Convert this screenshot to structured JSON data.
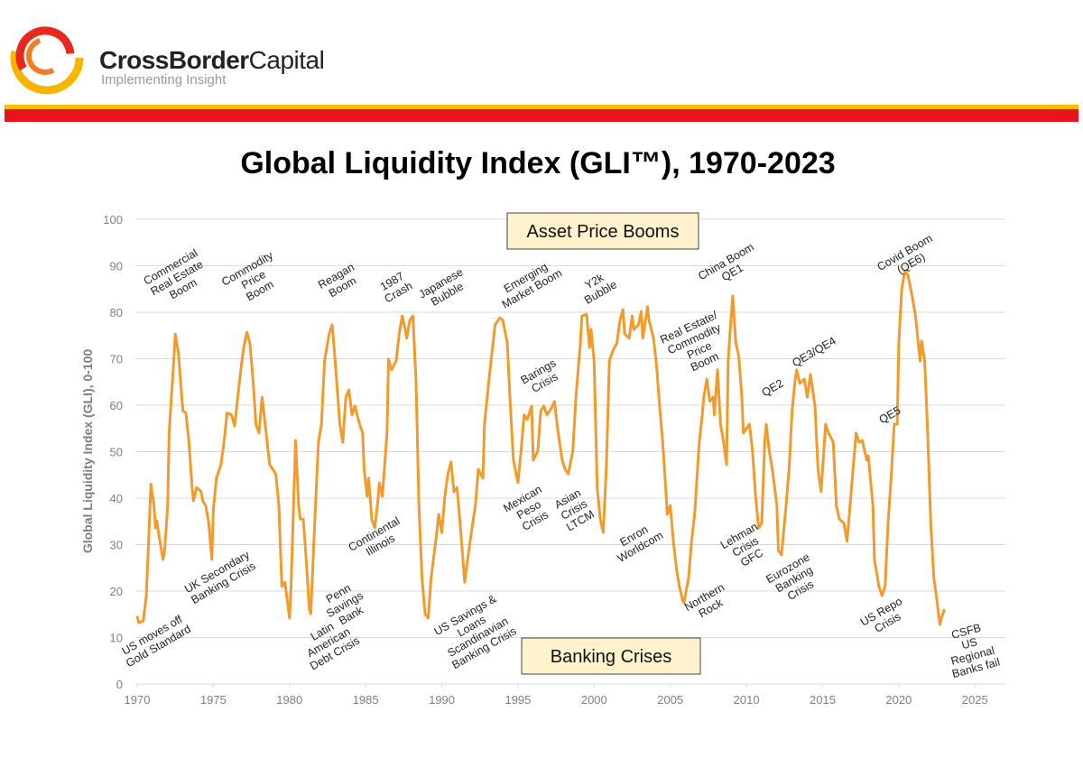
{
  "header": {
    "brand_bold": "CrossBorder",
    "brand_regular": "Capital",
    "tagline": "Implementing Insight"
  },
  "chart_data": {
    "type": "line",
    "title": "Global Liquidity Index (GLI™), 1970-2023",
    "y_label": "Global Liquidity Index (GLI), 0-100",
    "color": "#f39a2b",
    "grid": true,
    "xlim": [
      1970,
      2027
    ],
    "ylim": [
      0,
      100
    ],
    "xticks": [
      1970,
      1975,
      1980,
      1985,
      1990,
      1995,
      2000,
      2005,
      2010,
      2015,
      2020,
      2025
    ],
    "yticks": [
      0,
      10,
      20,
      30,
      40,
      50,
      60,
      70,
      80,
      90,
      100
    ],
    "x": [
      1970.0,
      1970.1,
      1970.4,
      1970.6,
      1970.8,
      1970.9,
      1971.1,
      1971.2,
      1971.3,
      1971.4,
      1971.7,
      1971.8,
      1972.0,
      1972.1,
      1972.4,
      1972.5,
      1972.7,
      1973.0,
      1973.2,
      1973.4,
      1973.6,
      1973.7,
      1973.9,
      1974.2,
      1974.3,
      1974.5,
      1974.7,
      1974.9,
      1975.0,
      1975.2,
      1975.5,
      1975.7,
      1975.9,
      1976.2,
      1976.4,
      1976.6,
      1976.8,
      1977.0,
      1977.2,
      1977.4,
      1977.6,
      1977.8,
      1978.0,
      1978.2,
      1978.4,
      1978.7,
      1978.9,
      1979.1,
      1979.3,
      1979.5,
      1979.7,
      1980.0,
      1980.1,
      1980.4,
      1980.6,
      1980.7,
      1980.9,
      1981.1,
      1981.3,
      1981.4,
      1981.6,
      1981.9,
      1982.1,
      1982.3,
      1982.6,
      1982.8,
      1983.0,
      1983.3,
      1983.5,
      1983.7,
      1983.9,
      1984.1,
      1984.3,
      1984.6,
      1984.8,
      1984.9,
      1985.1,
      1985.2,
      1985.4,
      1985.6,
      1985.8,
      1985.9,
      1986.1,
      1986.4,
      1986.5,
      1986.7,
      1987.0,
      1987.2,
      1987.4,
      1987.6,
      1987.7,
      1987.9,
      1988.1,
      1988.3,
      1988.5,
      1988.7,
      1988.9,
      1989.1,
      1989.3,
      1989.6,
      1989.8,
      1990.0,
      1990.2,
      1990.4,
      1990.6,
      1990.8,
      1991.0,
      1991.2,
      1991.5,
      1991.7,
      1991.9,
      1992.2,
      1992.4,
      1992.7,
      1992.8,
      1993.1,
      1993.3,
      1993.5,
      1993.8,
      1994.0,
      1994.3,
      1994.5,
      1994.7,
      1995.0,
      1995.2,
      1995.4,
      1995.6,
      1995.9,
      1996.0,
      1996.3,
      1996.5,
      1996.7,
      1996.9,
      1997.2,
      1997.4,
      1997.6,
      1997.9,
      1998.1,
      1998.3,
      1998.6,
      1998.8,
      1999.1,
      1999.2,
      1999.5,
      1999.7,
      1999.8,
      2000.0,
      2000.2,
      2000.4,
      2000.6,
      2000.8,
      2001.0,
      2001.2,
      2001.5,
      2001.7,
      2001.9,
      2002.0,
      2002.3,
      2002.5,
      2002.6,
      2002.9,
      2003.1,
      2003.2,
      2003.5,
      2003.6,
      2003.9,
      2004.1,
      2004.3,
      2004.5,
      2004.7,
      2004.8,
      2005.0,
      2005.2,
      2005.4,
      2005.6,
      2005.8,
      2005.9,
      2006.2,
      2006.4,
      2006.6,
      2006.9,
      2007.1,
      2007.2,
      2007.4,
      2007.6,
      2007.8,
      2007.9,
      2008.1,
      2008.3,
      2008.5,
      2008.7,
      2008.8,
      2009.0,
      2009.1,
      2009.3,
      2009.5,
      2009.7,
      2009.8,
      2010.0,
      2010.2,
      2010.4,
      2010.6,
      2010.8,
      2011.0,
      2011.2,
      2011.3,
      2011.5,
      2011.7,
      2012.0,
      2012.1,
      2012.3,
      2012.6,
      2012.8,
      2013.0,
      2013.2,
      2013.3,
      2013.5,
      2013.8,
      2014.0,
      2014.2,
      2014.5,
      2014.7,
      2014.9,
      2015.2,
      2015.4,
      2015.7,
      2015.9,
      2016.1,
      2016.4,
      2016.6,
      2016.8,
      2017.0,
      2017.2,
      2017.4,
      2017.6,
      2017.9,
      2018.0,
      2018.3,
      2018.4,
      2018.7,
      2018.9,
      2019.1,
      2019.3,
      2019.5,
      2019.7,
      2019.9,
      2020.0,
      2020.2,
      2020.4,
      2020.6,
      2020.9,
      2021.1,
      2021.4,
      2021.5,
      2021.7,
      2021.9,
      2022.1,
      2022.3,
      2022.5,
      2022.7,
      2022.8,
      2023.0
    ],
    "values": [
      14.6,
      13.2,
      13.6,
      19.0,
      34.6,
      43.0,
      38.4,
      33.6,
      35.1,
      32.6,
      26.8,
      28.7,
      38.4,
      54.0,
      69.5,
      75.3,
      71.5,
      58.8,
      58.3,
      52.0,
      42.3,
      39.4,
      42.3,
      41.4,
      39.4,
      38.4,
      34.6,
      26.8,
      37.5,
      44.3,
      47.2,
      52.0,
      58.3,
      57.9,
      55.5,
      61.7,
      67.6,
      72.4,
      75.7,
      73.4,
      65.6,
      55.9,
      54.0,
      61.7,
      55.9,
      47.2,
      46.2,
      45.2,
      38.4,
      21.0,
      21.9,
      14.2,
      21.0,
      52.4,
      38.4,
      35.5,
      35.5,
      26.8,
      16.1,
      15.1,
      30.7,
      52.0,
      55.9,
      69.5,
      75.3,
      77.3,
      69.5,
      55.9,
      52.0,
      61.7,
      63.3,
      57.9,
      59.8,
      55.9,
      54.0,
      46.2,
      40.4,
      44.3,
      35.5,
      33.6,
      39.4,
      43.3,
      40.4,
      54.0,
      69.9,
      67.6,
      69.5,
      75.3,
      79.2,
      76.3,
      74.4,
      78.3,
      79.2,
      65.6,
      38.4,
      22.9,
      15.1,
      14.2,
      22.9,
      30.7,
      36.5,
      32.6,
      40.4,
      45.2,
      47.8,
      41.4,
      42.3,
      34.6,
      21.9,
      26.8,
      31.7,
      38.4,
      46.2,
      44.3,
      55.9,
      65.6,
      71.5,
      77.3,
      78.8,
      78.3,
      73.4,
      59.8,
      48.2,
      43.3,
      50.1,
      57.9,
      56.9,
      59.8,
      48.2,
      50.1,
      58.8,
      59.8,
      57.9,
      59.4,
      60.8,
      55.0,
      48.2,
      46.2,
      45.2,
      50.1,
      61.7,
      73.4,
      79.2,
      79.6,
      72.4,
      76.3,
      69.5,
      42.3,
      35.5,
      32.6,
      46.2,
      69.5,
      71.5,
      73.4,
      78.3,
      80.6,
      75.3,
      74.4,
      79.2,
      76.3,
      77.3,
      80.2,
      74.4,
      81.2,
      78.3,
      74.4,
      68.5,
      59.8,
      52.0,
      42.3,
      36.5,
      38.4,
      30.7,
      24.9,
      21.0,
      18.1,
      17.5,
      22.9,
      30.7,
      36.5,
      52.0,
      57.9,
      61.7,
      65.6,
      60.8,
      61.7,
      57.9,
      67.6,
      55.9,
      52.0,
      47.2,
      69.5,
      79.2,
      83.5,
      73.4,
      70.5,
      61.7,
      54.0,
      55.0,
      55.9,
      50.1,
      40.4,
      33.6,
      34.6,
      52.0,
      55.9,
      50.1,
      46.2,
      38.4,
      28.7,
      27.8,
      38.4,
      46.2,
      58.8,
      65.6,
      67.6,
      64.7,
      65.6,
      61.7,
      66.6,
      59.8,
      46.2,
      41.4,
      55.9,
      54.0,
      52.0,
      38.4,
      35.5,
      34.6,
      30.7,
      38.4,
      46.2,
      54.0,
      52.0,
      52.4,
      48.2,
      49.1,
      38.4,
      26.8,
      21.0,
      19.0,
      21.0,
      34.6,
      44.3,
      55.9,
      55.9,
      73.4,
      85.0,
      88.9,
      88.0,
      83.1,
      79.2,
      69.5,
      73.8,
      69.5,
      54.0,
      34.6,
      22.9,
      18.1,
      12.8,
      14.2,
      16.1
    ],
    "annotations": [
      [
        "Commercial",
        "Real Estate",
        "Boom"
      ],
      [
        "Commodity",
        "Price",
        "Boom"
      ],
      [
        "Reagan",
        "Boom"
      ],
      [
        "1987",
        "Crash"
      ],
      [
        "Japanese",
        "Bubble"
      ],
      [
        "Emerging",
        "Market Boom"
      ],
      [
        "Y2k",
        "Bubble"
      ],
      [
        "China Boom",
        "QE1"
      ],
      [
        "Covid Boom",
        "(QE6)"
      ],
      [
        "Real Estate/",
        "Commodity",
        "Price",
        "Boom"
      ],
      [
        "Barings",
        "Crisis"
      ],
      [
        "QE2"
      ],
      [
        "QE3/QE4"
      ],
      [
        "QE5"
      ],
      [
        "US moves off",
        "Gold Standard"
      ],
      [
        "UK Secondary",
        "Banking Crisis"
      ],
      [
        "Penn",
        "Savings",
        "Bank"
      ],
      [
        "Latin",
        "American",
        "Debt Crisis"
      ],
      [
        "Continental",
        "Illinois"
      ],
      [
        "US Savings &",
        "Loans",
        "Scandinavian",
        "Banking Crisis"
      ],
      [
        "Mexican",
        "Peso",
        "Crisis"
      ],
      [
        "Asian",
        "Crisis",
        "LTCM"
      ],
      [
        "Enron",
        "Worldcom"
      ],
      [
        "Northern",
        "Rock"
      ],
      [
        "Lehman",
        "Crisis",
        "GFC"
      ],
      [
        "Eurozone",
        "Banking",
        "Crisis"
      ],
      [
        "US Repo",
        "Crisis"
      ],
      [
        "CSFB",
        "US",
        "Regional",
        "Banks fail"
      ]
    ],
    "boxes": [
      "Asset Price Booms",
      "Banking Crises"
    ]
  }
}
